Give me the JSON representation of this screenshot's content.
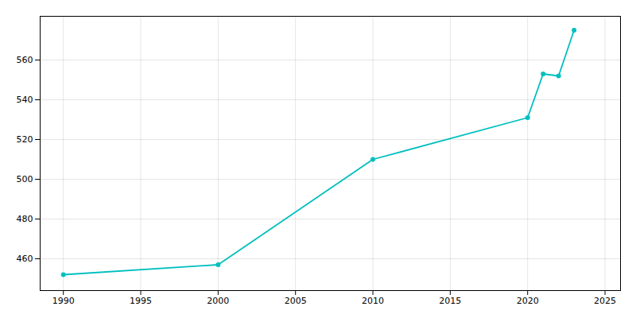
{
  "chart_data": {
    "type": "line",
    "x": [
      1990,
      2000,
      2010,
      2020,
      2021,
      2022,
      2023
    ],
    "values": [
      452,
      457,
      510,
      531,
      553,
      552,
      575
    ],
    "color": "#00BFBF",
    "marker": "circle",
    "xlim": [
      1988.5,
      2026
    ],
    "ylim": [
      444,
      582
    ],
    "xticks": [
      1990,
      1995,
      2000,
      2005,
      2010,
      2015,
      2020,
      2025
    ],
    "yticks": [
      460,
      480,
      500,
      520,
      540,
      560
    ],
    "grid": true
  }
}
